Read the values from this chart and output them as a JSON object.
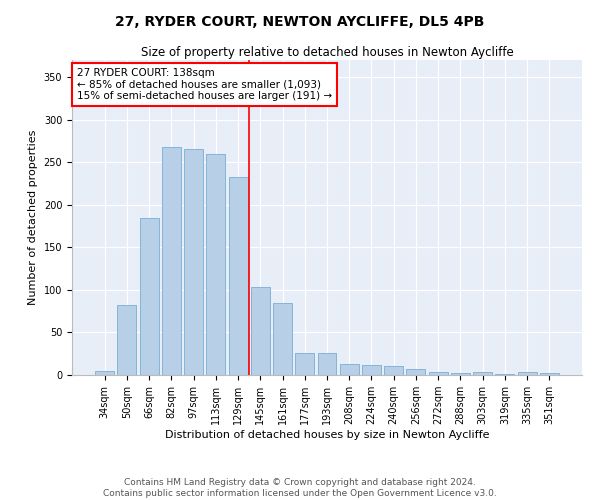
{
  "title": "27, RYDER COURT, NEWTON AYCLIFFE, DL5 4PB",
  "subtitle": "Size of property relative to detached houses in Newton Aycliffe",
  "xlabel": "Distribution of detached houses by size in Newton Aycliffe",
  "ylabel": "Number of detached properties",
  "categories": [
    "34sqm",
    "50sqm",
    "66sqm",
    "82sqm",
    "97sqm",
    "113sqm",
    "129sqm",
    "145sqm",
    "161sqm",
    "177sqm",
    "193sqm",
    "208sqm",
    "224sqm",
    "240sqm",
    "256sqm",
    "272sqm",
    "288sqm",
    "303sqm",
    "319sqm",
    "335sqm",
    "351sqm"
  ],
  "values": [
    5,
    82,
    185,
    268,
    265,
    260,
    232,
    103,
    85,
    26,
    26,
    13,
    12,
    11,
    7,
    3,
    2,
    3,
    1,
    3,
    2
  ],
  "bar_color": "#b8cfe8",
  "bar_edge_color": "#7aadd4",
  "annotation_line1": "27 RYDER COURT: 138sqm",
  "annotation_line2": "← 85% of detached houses are smaller (1,093)",
  "annotation_line3": "15% of semi-detached houses are larger (191) →",
  "annotation_box_color": "white",
  "annotation_box_edge_color": "red",
  "marker_line_color": "red",
  "ylim": [
    0,
    370
  ],
  "yticks": [
    0,
    50,
    100,
    150,
    200,
    250,
    300,
    350
  ],
  "footer1": "Contains HM Land Registry data © Crown copyright and database right 2024.",
  "footer2": "Contains public sector information licensed under the Open Government Licence v3.0.",
  "bg_color": "#e8eef8",
  "title_fontsize": 10,
  "subtitle_fontsize": 8.5,
  "axis_label_fontsize": 8,
  "tick_fontsize": 7,
  "footer_fontsize": 6.5,
  "annotation_fontsize": 7.5
}
